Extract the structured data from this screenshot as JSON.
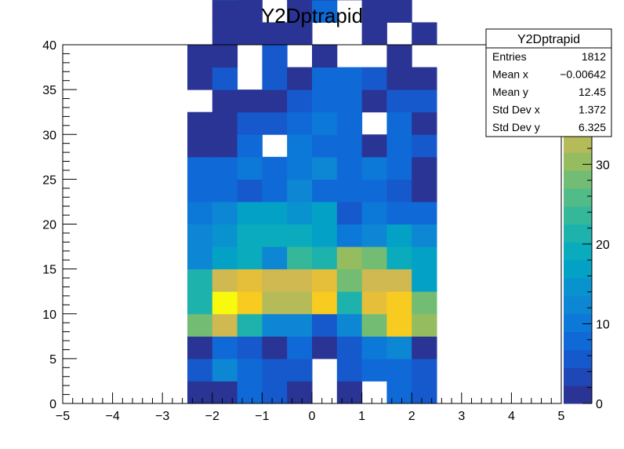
{
  "chart_data": {
    "type": "heatmap",
    "title": "Y2Dptrapid",
    "xlabel": "",
    "ylabel": "",
    "xlim": [
      -5,
      5
    ],
    "ylim": [
      0,
      40
    ],
    "zlim": [
      0,
      45
    ],
    "x_ticks": [
      "−5",
      "−4",
      "−3",
      "−2",
      "−1",
      "0",
      "1",
      "2",
      "3",
      "4",
      "5"
    ],
    "y_ticks": [
      "0",
      "5",
      "10",
      "15",
      "20",
      "25",
      "30",
      "35",
      "40"
    ],
    "z_ticks": [
      "0",
      "10",
      "20",
      "30",
      "40"
    ],
    "x_bin_edges": [
      -2.5,
      -2,
      -1.5,
      -1,
      -0.5,
      0,
      0.5,
      1,
      1.5,
      2,
      2.5
    ],
    "y_bin_width": 2.5,
    "grid": false,
    "palette": [
      "#2a3494",
      "#1f47b5",
      "#1659cd",
      "#0f6ad8",
      "#0c79d9",
      "#0d86d4",
      "#0993ce",
      "#04a1c6",
      "#0aabbd",
      "#1eb2ad",
      "#35b89a",
      "#51bc87",
      "#72bd73",
      "#95bd60",
      "#b4bb58",
      "#cfb950",
      "#e6bf3a",
      "#f8cb20",
      "#f9e10e",
      "#f8fa0d"
    ],
    "cells": [
      {
        "x": 0,
        "y": 0,
        "z": 2
      },
      {
        "x": 1,
        "y": 0,
        "z": 2
      },
      {
        "x": 2,
        "y": 0,
        "z": 8
      },
      {
        "x": 3,
        "y": 0,
        "z": 5
      },
      {
        "x": 4,
        "y": 0,
        "z": 2
      },
      {
        "x": 6,
        "y": 0,
        "z": 1
      },
      {
        "x": 8,
        "y": 0,
        "z": 8
      },
      {
        "x": 9,
        "y": 0,
        "z": 5
      },
      {
        "x": 0,
        "y": 1,
        "z": 5
      },
      {
        "x": 1,
        "y": 1,
        "z": 12
      },
      {
        "x": 2,
        "y": 1,
        "z": 8
      },
      {
        "x": 3,
        "y": 1,
        "z": 5
      },
      {
        "x": 4,
        "y": 1,
        "z": 5
      },
      {
        "x": 6,
        "y": 1,
        "z": 5
      },
      {
        "x": 7,
        "y": 1,
        "z": 8
      },
      {
        "x": 8,
        "y": 1,
        "z": 8
      },
      {
        "x": 9,
        "y": 1,
        "z": 5
      },
      {
        "x": 0,
        "y": 2,
        "z": 2
      },
      {
        "x": 1,
        "y": 2,
        "z": 8
      },
      {
        "x": 2,
        "y": 2,
        "z": 5
      },
      {
        "x": 3,
        "y": 2,
        "z": 2
      },
      {
        "x": 4,
        "y": 2,
        "z": 8
      },
      {
        "x": 5,
        "y": 2,
        "z": 2
      },
      {
        "x": 6,
        "y": 2,
        "z": 5
      },
      {
        "x": 7,
        "y": 2,
        "z": 10
      },
      {
        "x": 8,
        "y": 2,
        "z": 12
      },
      {
        "x": 9,
        "y": 2,
        "z": 2
      },
      {
        "x": 0,
        "y": 3,
        "z": 28
      },
      {
        "x": 1,
        "y": 3,
        "z": 34
      },
      {
        "x": 2,
        "y": 3,
        "z": 22
      },
      {
        "x": 3,
        "y": 3,
        "z": 12
      },
      {
        "x": 4,
        "y": 3,
        "z": 12
      },
      {
        "x": 5,
        "y": 3,
        "z": 5
      },
      {
        "x": 6,
        "y": 3,
        "z": 12
      },
      {
        "x": 7,
        "y": 3,
        "z": 28
      },
      {
        "x": 8,
        "y": 3,
        "z": 40
      },
      {
        "x": 9,
        "y": 3,
        "z": 30
      },
      {
        "x": 0,
        "y": 4,
        "z": 22
      },
      {
        "x": 1,
        "y": 4,
        "z": 45
      },
      {
        "x": 2,
        "y": 4,
        "z": 40
      },
      {
        "x": 3,
        "y": 4,
        "z": 33
      },
      {
        "x": 4,
        "y": 4,
        "z": 33
      },
      {
        "x": 5,
        "y": 4,
        "z": 40
      },
      {
        "x": 6,
        "y": 4,
        "z": 22
      },
      {
        "x": 7,
        "y": 4,
        "z": 36
      },
      {
        "x": 8,
        "y": 4,
        "z": 40
      },
      {
        "x": 9,
        "y": 4,
        "z": 28
      },
      {
        "x": 0,
        "y": 5,
        "z": 22
      },
      {
        "x": 1,
        "y": 5,
        "z": 34
      },
      {
        "x": 2,
        "y": 5,
        "z": 38
      },
      {
        "x": 3,
        "y": 5,
        "z": 34
      },
      {
        "x": 4,
        "y": 5,
        "z": 34
      },
      {
        "x": 5,
        "y": 5,
        "z": 38
      },
      {
        "x": 6,
        "y": 5,
        "z": 28
      },
      {
        "x": 7,
        "y": 5,
        "z": 34
      },
      {
        "x": 8,
        "y": 5,
        "z": 34
      },
      {
        "x": 9,
        "y": 5,
        "z": 16
      },
      {
        "x": 0,
        "y": 6,
        "z": 12
      },
      {
        "x": 1,
        "y": 6,
        "z": 16
      },
      {
        "x": 2,
        "y": 6,
        "z": 20
      },
      {
        "x": 3,
        "y": 6,
        "z": 12
      },
      {
        "x": 4,
        "y": 6,
        "z": 24
      },
      {
        "x": 5,
        "y": 6,
        "z": 22
      },
      {
        "x": 6,
        "y": 6,
        "z": 30
      },
      {
        "x": 7,
        "y": 6,
        "z": 28
      },
      {
        "x": 8,
        "y": 6,
        "z": 18
      },
      {
        "x": 9,
        "y": 6,
        "z": 16
      },
      {
        "x": 0,
        "y": 7,
        "z": 12
      },
      {
        "x": 1,
        "y": 7,
        "z": 14
      },
      {
        "x": 2,
        "y": 7,
        "z": 20
      },
      {
        "x": 3,
        "y": 7,
        "z": 18
      },
      {
        "x": 4,
        "y": 7,
        "z": 20
      },
      {
        "x": 5,
        "y": 7,
        "z": 16
      },
      {
        "x": 6,
        "y": 7,
        "z": 10
      },
      {
        "x": 7,
        "y": 7,
        "z": 12
      },
      {
        "x": 8,
        "y": 7,
        "z": 16
      },
      {
        "x": 9,
        "y": 7,
        "z": 12
      },
      {
        "x": 0,
        "y": 8,
        "z": 10
      },
      {
        "x": 1,
        "y": 8,
        "z": 12
      },
      {
        "x": 2,
        "y": 8,
        "z": 16
      },
      {
        "x": 3,
        "y": 8,
        "z": 16
      },
      {
        "x": 4,
        "y": 8,
        "z": 14
      },
      {
        "x": 5,
        "y": 8,
        "z": 16
      },
      {
        "x": 6,
        "y": 8,
        "z": 5
      },
      {
        "x": 7,
        "y": 8,
        "z": 10
      },
      {
        "x": 8,
        "y": 8,
        "z": 8
      },
      {
        "x": 9,
        "y": 8,
        "z": 8
      },
      {
        "x": 0,
        "y": 9,
        "z": 8
      },
      {
        "x": 1,
        "y": 9,
        "z": 8
      },
      {
        "x": 2,
        "y": 9,
        "z": 5
      },
      {
        "x": 3,
        "y": 9,
        "z": 8
      },
      {
        "x": 4,
        "y": 9,
        "z": 12
      },
      {
        "x": 5,
        "y": 9,
        "z": 8
      },
      {
        "x": 6,
        "y": 9,
        "z": 8
      },
      {
        "x": 7,
        "y": 9,
        "z": 8
      },
      {
        "x": 8,
        "y": 9,
        "z": 5
      },
      {
        "x": 9,
        "y": 9,
        "z": 2
      },
      {
        "x": 0,
        "y": 10,
        "z": 8
      },
      {
        "x": 1,
        "y": 10,
        "z": 8
      },
      {
        "x": 2,
        "y": 10,
        "z": 10
      },
      {
        "x": 3,
        "y": 10,
        "z": 8
      },
      {
        "x": 4,
        "y": 10,
        "z": 10
      },
      {
        "x": 5,
        "y": 10,
        "z": 12
      },
      {
        "x": 6,
        "y": 10,
        "z": 8
      },
      {
        "x": 7,
        "y": 10,
        "z": 10
      },
      {
        "x": 8,
        "y": 10,
        "z": 8
      },
      {
        "x": 9,
        "y": 10,
        "z": 2
      },
      {
        "x": 0,
        "y": 11,
        "z": 2
      },
      {
        "x": 1,
        "y": 11,
        "z": 2
      },
      {
        "x": 2,
        "y": 11,
        "z": 8
      },
      {
        "x": 4,
        "y": 11,
        "z": 10
      },
      {
        "x": 5,
        "y": 11,
        "z": 8
      },
      {
        "x": 6,
        "y": 11,
        "z": 8
      },
      {
        "x": 7,
        "y": 11,
        "z": 2
      },
      {
        "x": 8,
        "y": 11,
        "z": 8
      },
      {
        "x": 9,
        "y": 11,
        "z": 5
      },
      {
        "x": 0,
        "y": 12,
        "z": 2
      },
      {
        "x": 1,
        "y": 12,
        "z": 2
      },
      {
        "x": 2,
        "y": 12,
        "z": 5
      },
      {
        "x": 3,
        "y": 12,
        "z": 5
      },
      {
        "x": 4,
        "y": 12,
        "z": 8
      },
      {
        "x": 5,
        "y": 12,
        "z": 10
      },
      {
        "x": 6,
        "y": 12,
        "z": 8
      },
      {
        "x": 8,
        "y": 12,
        "z": 8
      },
      {
        "x": 9,
        "y": 12,
        "z": 2
      },
      {
        "x": 1,
        "y": 13,
        "z": 2
      },
      {
        "x": 2,
        "y": 13,
        "z": 2
      },
      {
        "x": 3,
        "y": 13,
        "z": 2
      },
      {
        "x": 4,
        "y": 13,
        "z": 5
      },
      {
        "x": 5,
        "y": 13,
        "z": 8
      },
      {
        "x": 6,
        "y": 13,
        "z": 8
      },
      {
        "x": 7,
        "y": 13,
        "z": 2
      },
      {
        "x": 8,
        "y": 13,
        "z": 5
      },
      {
        "x": 9,
        "y": 13,
        "z": 5
      },
      {
        "x": 0,
        "y": 14,
        "z": 2
      },
      {
        "x": 1,
        "y": 14,
        "z": 5
      },
      {
        "x": 3,
        "y": 14,
        "z": 5
      },
      {
        "x": 4,
        "y": 14,
        "z": 2
      },
      {
        "x": 5,
        "y": 14,
        "z": 8
      },
      {
        "x": 6,
        "y": 14,
        "z": 8
      },
      {
        "x": 7,
        "y": 14,
        "z": 5
      },
      {
        "x": 8,
        "y": 14,
        "z": 2
      },
      {
        "x": 9,
        "y": 14,
        "z": 2
      },
      {
        "x": 0,
        "y": 15,
        "z": 2
      },
      {
        "x": 1,
        "y": 15,
        "z": 2
      },
      {
        "x": 3,
        "y": 15,
        "z": 5
      },
      {
        "x": 5,
        "y": 15,
        "z": 2
      },
      {
        "x": 8,
        "y": 15,
        "z": 2
      },
      {
        "x": 1,
        "y": 16,
        "z": 2
      },
      {
        "x": 2,
        "y": 16,
        "z": 2
      },
      {
        "x": 3,
        "y": 16,
        "z": 2
      },
      {
        "x": 4,
        "y": 16,
        "z": 2
      },
      {
        "x": 7,
        "y": 16,
        "z": 2
      },
      {
        "x": 9,
        "y": 16,
        "z": 2
      },
      {
        "x": 1,
        "y": 17,
        "z": 2
      },
      {
        "x": 2,
        "y": 17,
        "z": 2
      },
      {
        "x": 4,
        "y": 17,
        "z": 2
      },
      {
        "x": 5,
        "y": 17,
        "z": 8
      },
      {
        "x": 7,
        "y": 17,
        "z": 2
      },
      {
        "x": 8,
        "y": 17,
        "z": 2
      },
      {
        "x": 1,
        "y": 18,
        "z": 5
      },
      {
        "x": 4,
        "y": 18,
        "z": 2
      },
      {
        "x": 5,
        "y": 18,
        "z": 2
      },
      {
        "x": 6,
        "y": 18,
        "z": 2
      },
      {
        "x": 7,
        "y": 18,
        "z": 2
      },
      {
        "x": 2,
        "y": 19,
        "z": 2
      },
      {
        "x": 6,
        "y": 19,
        "z": 2
      },
      {
        "x": 7,
        "y": 19,
        "z": 2
      }
    ]
  },
  "stats_box": {
    "title": "Y2Dptrapid",
    "rows": [
      {
        "label": "Entries",
        "value": "1812"
      },
      {
        "label": "Mean x",
        "value": "−0.00642"
      },
      {
        "label": "Mean y",
        "value": "12.45"
      },
      {
        "label": "Std Dev x",
        "value": "1.372"
      },
      {
        "label": "Std Dev y",
        "value": "6.325"
      }
    ]
  }
}
